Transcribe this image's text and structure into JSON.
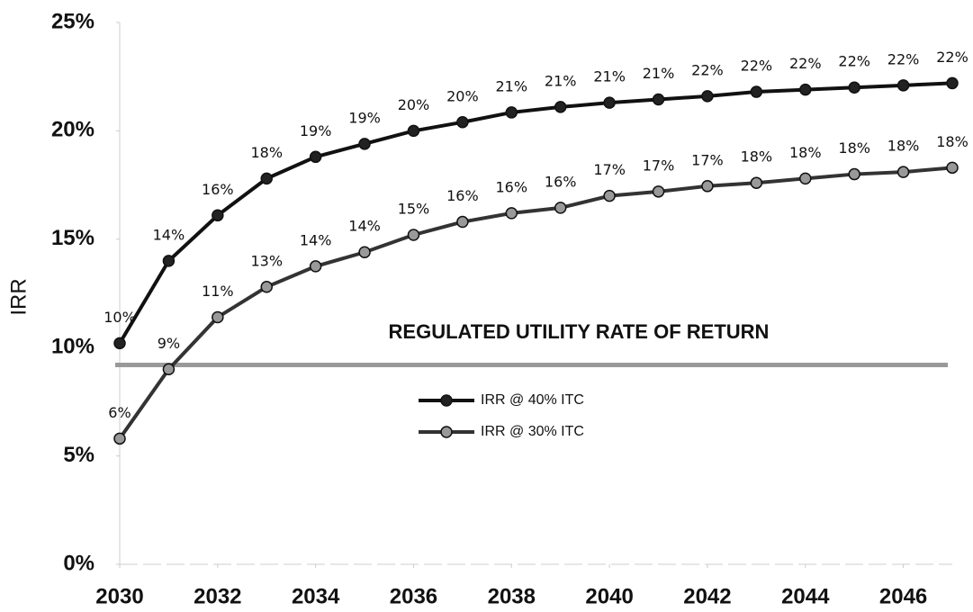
{
  "chart_data": {
    "type": "line",
    "y_axis_label": "IRR",
    "x": [
      2030,
      2031,
      2032,
      2033,
      2034,
      2035,
      2036,
      2037,
      2038,
      2039,
      2040,
      2041,
      2042,
      2043,
      2044,
      2045,
      2046,
      2047
    ],
    "xlim": [
      2030,
      2047
    ],
    "xticks": [
      2030,
      2032,
      2034,
      2036,
      2038,
      2040,
      2042,
      2044,
      2046
    ],
    "ylim": [
      0,
      25
    ],
    "yticks": [
      {
        "value": 0,
        "label": "0%"
      },
      {
        "value": 5,
        "label": "5%"
      },
      {
        "value": 10,
        "label": "10%"
      },
      {
        "value": 15,
        "label": "15%"
      },
      {
        "value": 20,
        "label": "20%"
      },
      {
        "value": 25,
        "label": "25%"
      }
    ],
    "series": [
      {
        "name": "IRR  @ 40% ITC",
        "color": "#111111",
        "marker_color": "#222222",
        "values": [
          10.2,
          14.0,
          16.1,
          17.8,
          18.8,
          19.4,
          20.0,
          20.4,
          20.85,
          21.1,
          21.3,
          21.45,
          21.6,
          21.8,
          21.9,
          22.0,
          22.1,
          22.2
        ],
        "value_labels": [
          "10%",
          "14%",
          "16%",
          "18%",
          "19%",
          "19%",
          "20%",
          "20%",
          "21%",
          "21%",
          "21%",
          "21%",
          "22%",
          "22%",
          "22%",
          "22%",
          "22%",
          "22%"
        ]
      },
      {
        "name": "IRR  @ 30% ITC",
        "color": "#333333",
        "marker_color": "#999999",
        "values": [
          5.8,
          9.0,
          11.4,
          12.8,
          13.75,
          14.4,
          15.2,
          15.8,
          16.2,
          16.45,
          17.0,
          17.2,
          17.45,
          17.6,
          17.8,
          18.0,
          18.1,
          18.3
        ],
        "value_labels": [
          "6%",
          "9%",
          "11%",
          "13%",
          "14%",
          "14%",
          "15%",
          "16%",
          "16%",
          "16%",
          "17%",
          "17%",
          "17%",
          "18%",
          "18%",
          "18%",
          "18%",
          "18%"
        ]
      }
    ],
    "reference_line": {
      "label": "REGULATED UTILITY RATE OF RETURN",
      "value": 9.2,
      "color": "#999999"
    }
  }
}
